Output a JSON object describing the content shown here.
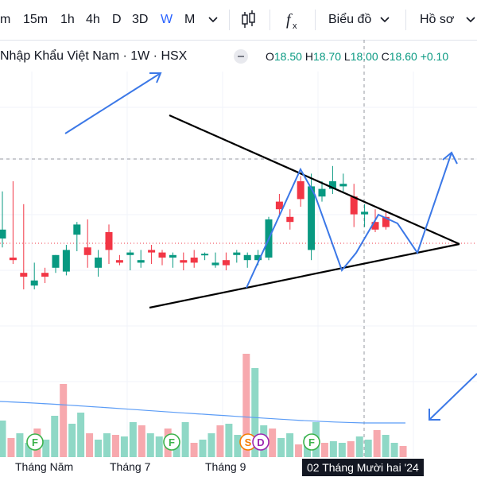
{
  "toolbar": {
    "timeframes": [
      "m",
      "15m",
      "1h",
      "4h",
      "D",
      "3D",
      "W",
      "M"
    ],
    "active_timeframe": "W",
    "chart_type_icon": "candles-icon",
    "indicators_icon": "fx-icon",
    "chart_menu_label": "Biểu đồ",
    "profile_menu_label": "Hồ sơ"
  },
  "legend": {
    "title": "Nhập Khẩu Việt Nam · 1W · HSX",
    "open_label": "O",
    "open_value": "18.50",
    "high_label": "H",
    "high_value": "18.70",
    "low_label": "L",
    "low_value": "18.00",
    "close_label": "C",
    "close_value": "18.60",
    "change": "+0.10"
  },
  "axis": {
    "x_labels": [
      "Tháng Năm",
      "Tháng 7",
      "Tháng 9"
    ],
    "crosshair_date": "02 Tháng Mười hai '24"
  },
  "markers": [
    "F",
    "F",
    "S",
    "D",
    "F"
  ],
  "colors": {
    "up": "#089981",
    "down": "#f23645",
    "accent": "#2962ff",
    "drawing": "#3b78e7"
  },
  "chart_data": {
    "type": "candlestick",
    "up_flags": [
      1,
      0,
      0,
      1,
      0,
      1,
      1,
      1,
      0,
      1,
      0,
      0,
      1,
      1,
      0,
      0,
      1,
      0,
      0,
      1,
      1,
      0,
      1,
      1,
      1,
      1,
      0,
      0,
      0,
      1,
      1,
      1,
      1,
      0,
      1,
      0,
      0
    ],
    "candles": [
      [
        75,
        112,
        68,
        82
      ],
      [
        60,
        120,
        55,
        58
      ],
      [
        45,
        102,
        35,
        48
      ],
      [
        42,
        56,
        35,
        38
      ],
      [
        48,
        52,
        40,
        45
      ],
      [
        62,
        62,
        48,
        52
      ],
      [
        49,
        70,
        46,
        66
      ],
      [
        78,
        88,
        65,
        86
      ],
      [
        68,
        90,
        52,
        62
      ],
      [
        52,
        66,
        45,
        60
      ],
      [
        80,
        86,
        55,
        66
      ],
      [
        58,
        62,
        54,
        56
      ],
      [
        62,
        66,
        50,
        64
      ],
      [
        56,
        66,
        52,
        58
      ],
      [
        64,
        70,
        55,
        66
      ],
      [
        64,
        66,
        54,
        60
      ],
      [
        60,
        64,
        52,
        62
      ],
      [
        56,
        64,
        50,
        58
      ],
      [
        60,
        66,
        52,
        56
      ],
      [
        62,
        64,
        58,
        63
      ],
      [
        54,
        64,
        52,
        56
      ],
      [
        54,
        64,
        50,
        58
      ],
      [
        64,
        66,
        56,
        62
      ],
      [
        62,
        64,
        52,
        58
      ],
      [
        62,
        66,
        54,
        58
      ],
      [
        60,
        92,
        58,
        90
      ],
      [
        98,
        110,
        92,
        104
      ],
      [
        88,
        98,
        82,
        92
      ],
      [
        106,
        124,
        100,
        120
      ],
      [
        66,
        126,
        58,
        116
      ],
      [
        114,
        120,
        104,
        108
      ],
      [
        114,
        132,
        110,
        120
      ],
      [
        118,
        126,
        112,
        116
      ],
      [
        94,
        118,
        84,
        108
      ],
      [
        94,
        102,
        84,
        96
      ],
      [
        88,
        98,
        80,
        82
      ],
      [
        84,
        96,
        82,
        92
      ]
    ]
  }
}
